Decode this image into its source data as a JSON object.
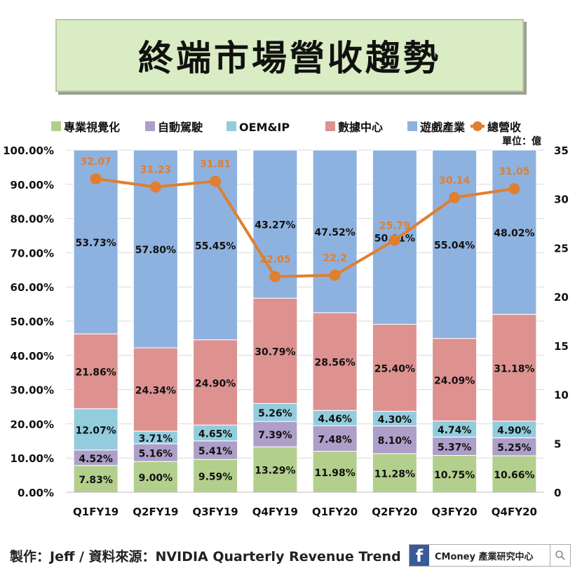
{
  "title": "終端市場營收趨勢",
  "footer": {
    "credit": "製作：Jeff / 資料來源：NVIDIA Quarterly Revenue Trend",
    "brand_icon": "f",
    "brand_name": "CMoney 產業研究中心"
  },
  "chart_data": {
    "type": "bar",
    "stacked": true,
    "unit_label": "單位：億",
    "categories": [
      "Q1FY19",
      "Q2FY19",
      "Q3FY19",
      "Q4FY19",
      "Q1FY20",
      "Q2FY20",
      "Q3FY20",
      "Q4FY20"
    ],
    "left_axis": {
      "min": 0,
      "max": 100,
      "step": 10,
      "format": "percent2"
    },
    "right_axis": {
      "min": 0,
      "max": 35,
      "step": 5
    },
    "series": [
      {
        "name": "專業視覺化",
        "color": "#b3cf8d",
        "values": [
          7.83,
          9.0,
          9.59,
          13.29,
          11.98,
          11.28,
          10.75,
          10.66
        ]
      },
      {
        "name": "自動駕駛",
        "color": "#ad9fc8",
        "values": [
          4.52,
          5.16,
          5.41,
          7.39,
          7.48,
          8.1,
          5.37,
          5.25
        ]
      },
      {
        "name": "OEM&IP",
        "color": "#93cddd",
        "values": [
          12.07,
          3.71,
          4.65,
          5.26,
          4.46,
          4.3,
          4.74,
          4.9
        ]
      },
      {
        "name": "數據中心",
        "color": "#dd9290",
        "values": [
          21.86,
          24.34,
          24.9,
          30.79,
          28.56,
          25.4,
          24.09,
          31.18
        ]
      },
      {
        "name": "遊戲產業",
        "color": "#8eb2e0",
        "values": [
          53.73,
          57.8,
          55.45,
          43.27,
          47.52,
          50.91,
          55.04,
          48.02
        ]
      }
    ],
    "line": {
      "name": "總營收",
      "color": "#e07f2f",
      "values": [
        32.07,
        31.23,
        31.81,
        22.05,
        22.2,
        25.79,
        30.14,
        31.05
      ],
      "labels": [
        "32.07",
        "31.23",
        "31.81",
        "22.05",
        "22.2",
        "25.79",
        "30.14",
        "31.05"
      ]
    },
    "grid": true,
    "legend_position": "top"
  }
}
